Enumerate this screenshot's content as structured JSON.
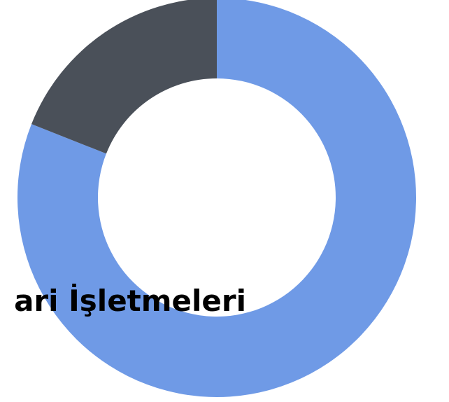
{
  "chart_data": {
    "type": "donut",
    "categories": [
      "ari İşletmeleri",
      null
    ],
    "values": [
      81,
      19
    ],
    "colors": [
      "#6f9ae6",
      "#4a5059"
    ]
  }
}
